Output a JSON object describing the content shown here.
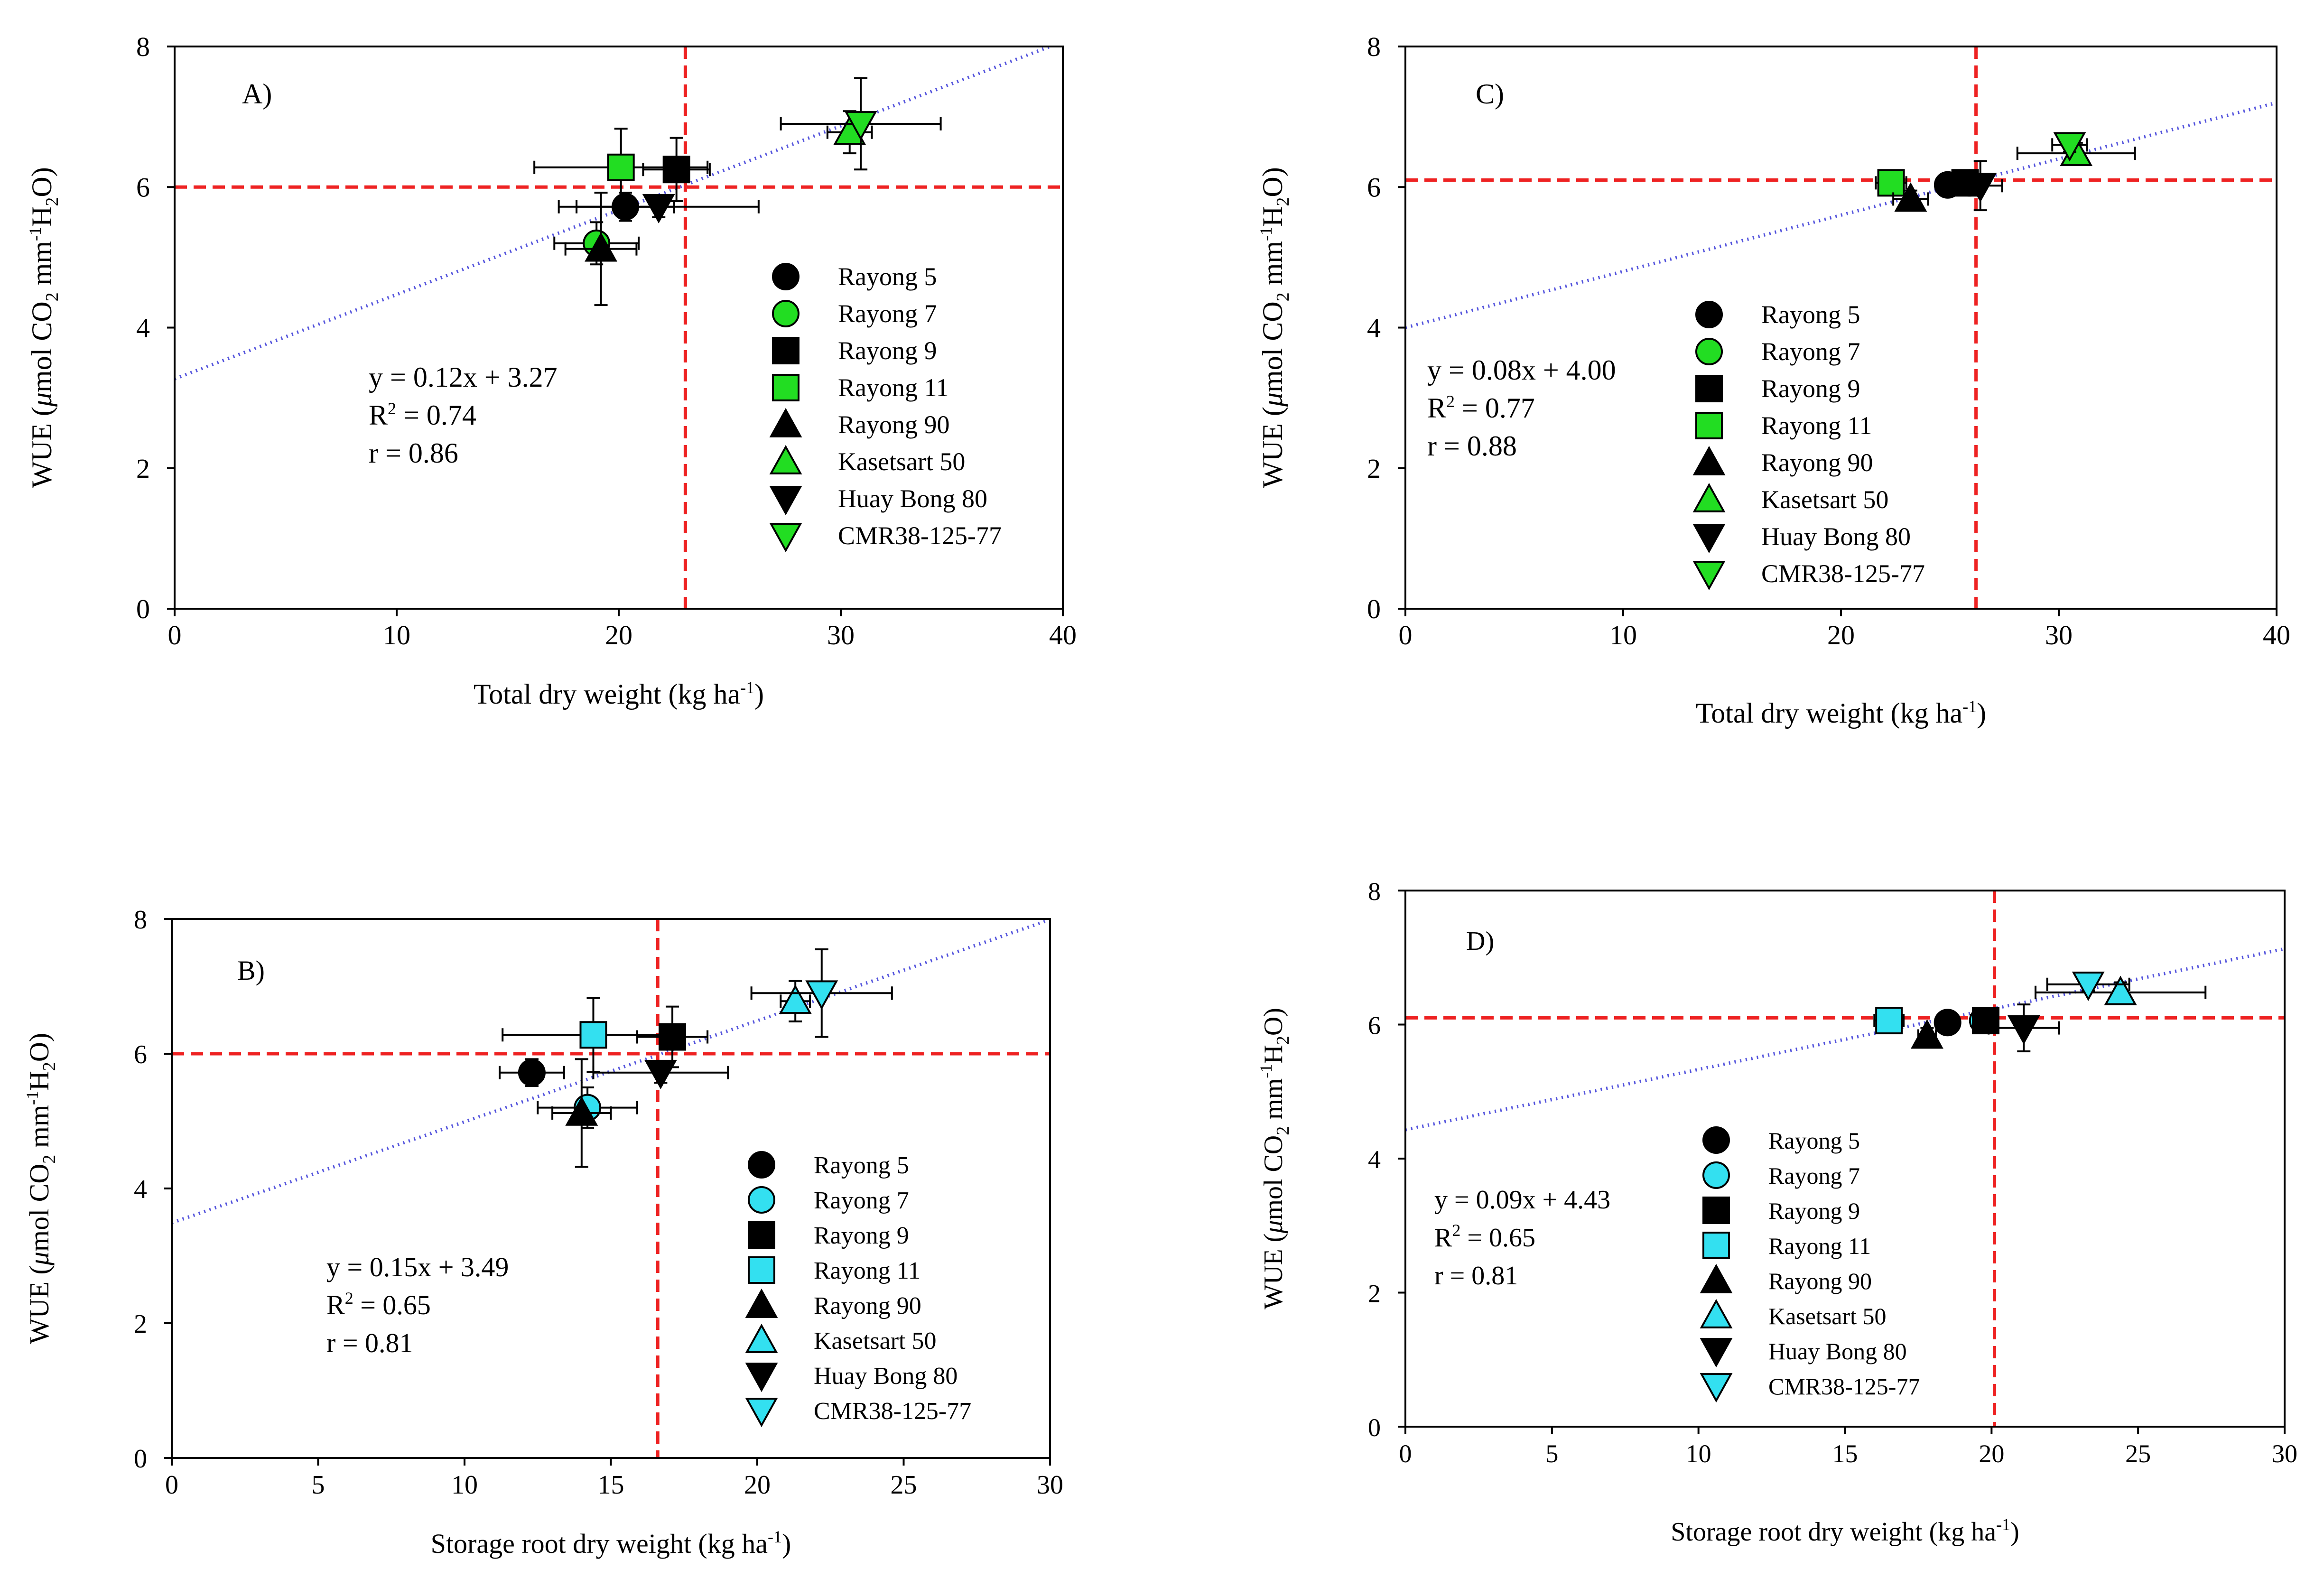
{
  "colors": {
    "black": "#000000",
    "green": "#22dd22",
    "cyan": "#33e0f0",
    "refline": "#ee2222",
    "trend": "#5555dd"
  },
  "legend_labels": [
    "Rayong 5",
    "Rayong 7",
    "Rayong 9",
    "Rayong 11",
    "Rayong 90",
    "Kasetsart 50",
    "Huay Bong 80",
    "CMR38-125-77"
  ],
  "legend_markers": [
    "circle",
    "circle",
    "square",
    "square",
    "triangle-up",
    "triangle-up",
    "triangle-down",
    "triangle-down"
  ],
  "legend_fill_roles": [
    "black",
    "accent",
    "black",
    "accent",
    "black",
    "accent",
    "black",
    "accent"
  ],
  "chart_data": [
    {
      "id": "A",
      "type": "scatter",
      "panel_label": "A)",
      "accent": "green",
      "xlabel_main": "Total dry weight (kg ha",
      "xlabel_sup": "-1",
      "xlabel_end": ")",
      "ylabel": {
        "a": "WUE (",
        "mu": "μ",
        "b": "mol CO",
        "sub1": "2",
        "c": " mm",
        "sup": "-1",
        "d": "H",
        "sub2": "2",
        "e": "O)"
      },
      "xlim": [
        0,
        40
      ],
      "ylim": [
        0,
        8
      ],
      "xticks": [
        0,
        10,
        20,
        30,
        40
      ],
      "yticks": [
        0,
        2,
        4,
        6,
        8
      ],
      "ref_x": 23.0,
      "ref_y": 6.0,
      "trend": {
        "slope": 0.12,
        "intercept": 3.27
      },
      "equation": "y = 0.12x + 3.27",
      "r2_prefix": "R",
      "r2_sup": "2",
      "r2_value": " = 0.74",
      "r_text": "r = 0.86",
      "points": [
        {
          "x": 20.3,
          "y": 5.72,
          "xerr": 2.2,
          "yerr": 0.2
        },
        {
          "x": 19.0,
          "y": 5.2,
          "xerr": 1.9,
          "yerr": 0.3
        },
        {
          "x": 22.6,
          "y": 6.25,
          "xerr": 1.5,
          "yerr": 0.45
        },
        {
          "x": 20.1,
          "y": 6.28,
          "xerr": 3.9,
          "yerr": 0.55
        },
        {
          "x": 19.2,
          "y": 5.12,
          "xerr": 1.6,
          "yerr": 0.8
        },
        {
          "x": 30.4,
          "y": 6.78,
          "xerr": 1.0,
          "yerr": 0.3
        },
        {
          "x": 21.8,
          "y": 5.72,
          "xerr": 4.5,
          "yerr": 0.15
        },
        {
          "x": 30.9,
          "y": 6.9,
          "xerr": 3.6,
          "yerr": 0.65
        }
      ]
    },
    {
      "id": "B",
      "type": "scatter",
      "panel_label": "B)",
      "accent": "cyan",
      "xlabel_main": "Storage root dry weight (kg ha",
      "xlabel_sup": "-1",
      "xlabel_end": ")",
      "ylabel": {
        "a": "WUE (",
        "mu": "μ",
        "b": "mol CO",
        "sub1": "2",
        "c": " mm",
        "sup": "-1",
        "d": "H",
        "sub2": "2",
        "e": "O)"
      },
      "xlim": [
        0,
        30
      ],
      "ylim": [
        0,
        8
      ],
      "xticks": [
        0,
        5,
        10,
        15,
        20,
        25,
        30
      ],
      "yticks": [
        0,
        2,
        4,
        6,
        8
      ],
      "ref_x": 16.6,
      "ref_y": 6.0,
      "trend": {
        "slope": 0.15,
        "intercept": 3.49
      },
      "equation": "y = 0.15x + 3.49",
      "r2_prefix": "R",
      "r2_sup": "2",
      "r2_value": " = 0.65",
      "r_text": "r = 0.81",
      "points": [
        {
          "x": 12.3,
          "y": 5.72,
          "xerr": 1.1,
          "yerr": 0.2
        },
        {
          "x": 14.2,
          "y": 5.2,
          "xerr": 1.7,
          "yerr": 0.3
        },
        {
          "x": 17.1,
          "y": 6.25,
          "xerr": 1.2,
          "yerr": 0.45
        },
        {
          "x": 14.4,
          "y": 6.28,
          "xerr": 3.1,
          "yerr": 0.55
        },
        {
          "x": 14.0,
          "y": 5.12,
          "xerr": 1.0,
          "yerr": 0.8
        },
        {
          "x": 21.3,
          "y": 6.78,
          "xerr": 0.5,
          "yerr": 0.3
        },
        {
          "x": 16.7,
          "y": 5.72,
          "xerr": 2.3,
          "yerr": 0.15
        },
        {
          "x": 22.2,
          "y": 6.9,
          "xerr": 2.4,
          "yerr": 0.65
        }
      ]
    },
    {
      "id": "C",
      "type": "scatter",
      "panel_label": "C)",
      "accent": "green",
      "xlabel_main": "Total dry weight (kg ha",
      "xlabel_sup": "-1",
      "xlabel_end": ")",
      "ylabel": {
        "a": "WUE (",
        "mu": "μ",
        "b": "mol CO",
        "sub1": "2",
        "c": " mm",
        "sup": "-1",
        "d": "H",
        "sub2": "2",
        "e": "O)"
      },
      "xlim": [
        0,
        40
      ],
      "ylim": [
        0,
        8
      ],
      "xticks": [
        0,
        10,
        20,
        30,
        40
      ],
      "yticks": [
        0,
        2,
        4,
        6,
        8
      ],
      "ref_x": 26.2,
      "ref_y": 6.1,
      "trend": {
        "slope": 0.08,
        "intercept": 4.0
      },
      "equation": "y = 0.08x + 4.00",
      "r2_prefix": "R",
      "r2_sup": "2",
      "r2_value": " = 0.77",
      "r_text": "r = 0.88",
      "points": [
        {
          "x": 24.9,
          "y": 6.03,
          "xerr": 0.4,
          "yerr": 0.1
        },
        {
          "x": 25.9,
          "y": 6.06,
          "xerr": 0.6,
          "yerr": 0.15
        },
        {
          "x": 25.7,
          "y": 6.06,
          "xerr": 0.5,
          "yerr": 0.15
        },
        {
          "x": 22.3,
          "y": 6.06,
          "xerr": 0.7,
          "yerr": 0.1
        },
        {
          "x": 23.2,
          "y": 5.83,
          "xerr": 0.8,
          "yerr": 0.12
        },
        {
          "x": 30.8,
          "y": 6.48,
          "xerr": 2.7,
          "yerr": 0.15
        },
        {
          "x": 26.4,
          "y": 6.02,
          "xerr": 1.0,
          "yerr": 0.35
        },
        {
          "x": 30.5,
          "y": 6.6,
          "xerr": 0.8,
          "yerr": 0.1
        }
      ]
    },
    {
      "id": "D",
      "type": "scatter",
      "panel_label": "D)",
      "accent": "cyan",
      "xlabel_main": "Storage root dry weight (kg ha",
      "xlabel_sup": "-1",
      "xlabel_end": ")",
      "ylabel": {
        "a": "WUE (",
        "mu": "μ",
        "b": "mol CO",
        "sub1": "2",
        "c": " mm",
        "sup": "-1",
        "d": "H",
        "sub2": "2",
        "e": "O)"
      },
      "xlim": [
        0,
        30
      ],
      "ylim": [
        0,
        8
      ],
      "xticks": [
        0,
        5,
        10,
        15,
        20,
        25,
        30
      ],
      "yticks": [
        0,
        2,
        4,
        6,
        8
      ],
      "ref_x": 20.1,
      "ref_y": 6.1,
      "trend": {
        "slope": 0.09,
        "intercept": 4.43
      },
      "equation": "y = 0.09x + 4.43",
      "r2_prefix": "R",
      "r2_sup": "2",
      "r2_value": " = 0.65",
      "r_text": "r = 0.81",
      "points": [
        {
          "x": 18.5,
          "y": 6.03,
          "xerr": 0.3,
          "yerr": 0.1
        },
        {
          "x": 19.7,
          "y": 6.06,
          "xerr": 0.4,
          "yerr": 0.15
        },
        {
          "x": 19.8,
          "y": 6.06,
          "xerr": 0.4,
          "yerr": 0.15
        },
        {
          "x": 16.5,
          "y": 6.06,
          "xerr": 0.5,
          "yerr": 0.1
        },
        {
          "x": 17.8,
          "y": 5.83,
          "xerr": 0.3,
          "yerr": 0.12
        },
        {
          "x": 24.4,
          "y": 6.48,
          "xerr": 2.9,
          "yerr": 0.15
        },
        {
          "x": 21.1,
          "y": 5.95,
          "xerr": 1.2,
          "yerr": 0.35
        },
        {
          "x": 23.3,
          "y": 6.6,
          "xerr": 1.4,
          "yerr": 0.1
        }
      ]
    }
  ]
}
